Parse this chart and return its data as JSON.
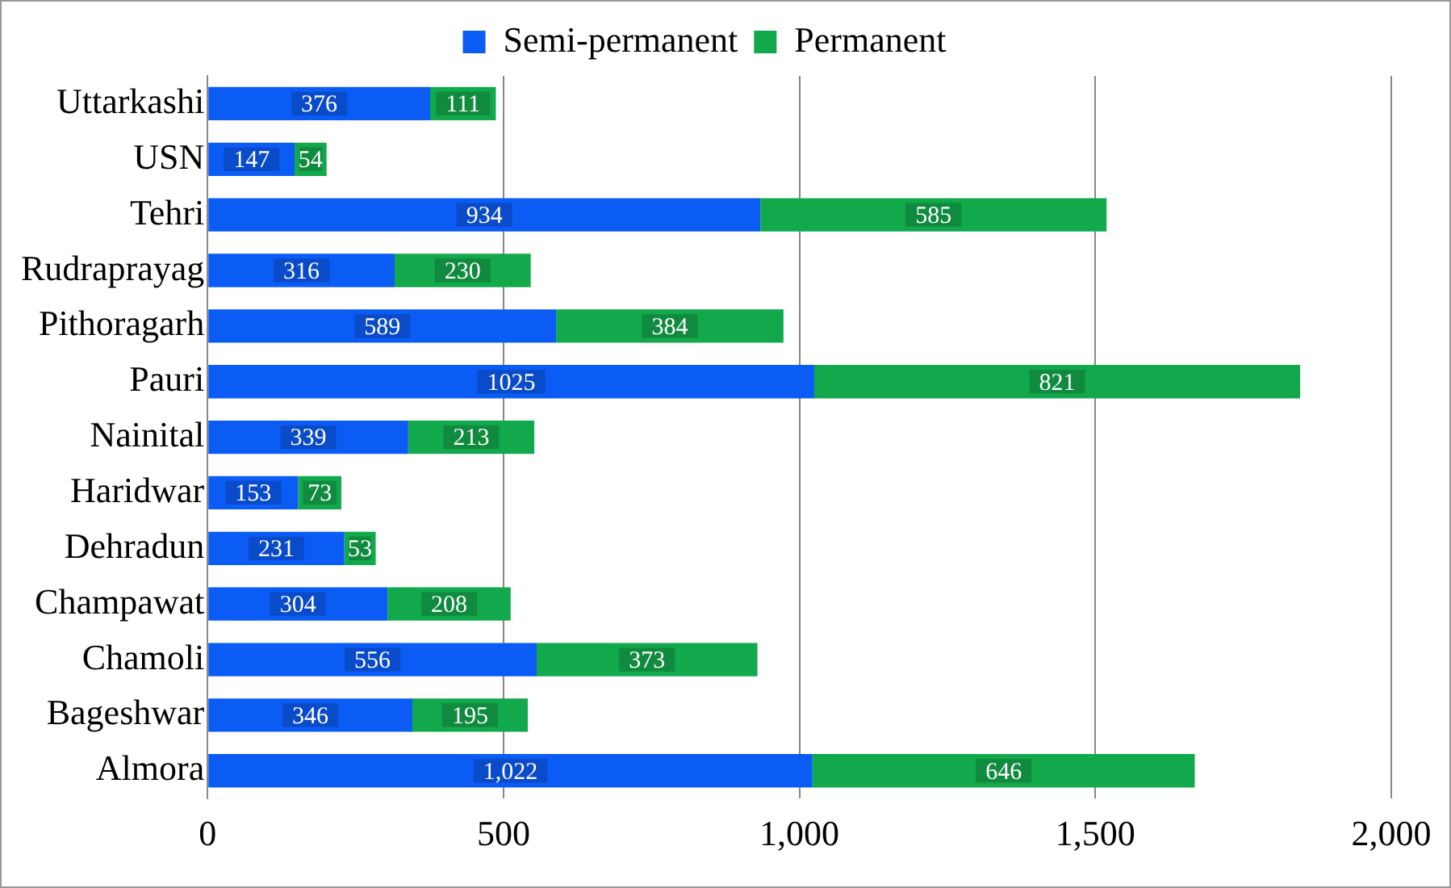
{
  "chart_data": {
    "type": "bar",
    "orientation": "horizontal",
    "stacked": true,
    "categories": [
      "Uttarkashi",
      "USN",
      "Tehri",
      "Rudraprayag",
      "Pithoragarh",
      "Pauri",
      "Nainital",
      "Haridwar",
      "Dehradun",
      "Champawat",
      "Chamoli",
      "Bageshwar",
      "Almora"
    ],
    "series": [
      {
        "name": "Semi-permanent",
        "color": "#0b5cf5",
        "values": [
          376,
          147,
          934,
          316,
          589,
          1025,
          339,
          153,
          231,
          304,
          556,
          346,
          1022
        ],
        "value_labels": [
          "376",
          "147",
          "934",
          "316",
          "589",
          "1025",
          "339",
          "153",
          "231",
          "304",
          "556",
          "346",
          "1,022"
        ]
      },
      {
        "name": "Permanent",
        "color": "#12a84c",
        "values": [
          111,
          54,
          585,
          230,
          384,
          821,
          213,
          73,
          53,
          208,
          373,
          195,
          646
        ],
        "value_labels": [
          "111",
          "54",
          "585",
          "230",
          "384",
          "821",
          "213",
          "73",
          "53",
          "208",
          "373",
          "195",
          "646"
        ]
      }
    ],
    "xlim": [
      0,
      2000
    ],
    "xticks": [
      0,
      500,
      {
        "value": 1000,
        "label": "1,000"
      },
      {
        "value": 1500,
        "label": "1,500"
      },
      {
        "value": 2000,
        "label": "2,000"
      }
    ],
    "grid": "x",
    "legend": "top"
  }
}
